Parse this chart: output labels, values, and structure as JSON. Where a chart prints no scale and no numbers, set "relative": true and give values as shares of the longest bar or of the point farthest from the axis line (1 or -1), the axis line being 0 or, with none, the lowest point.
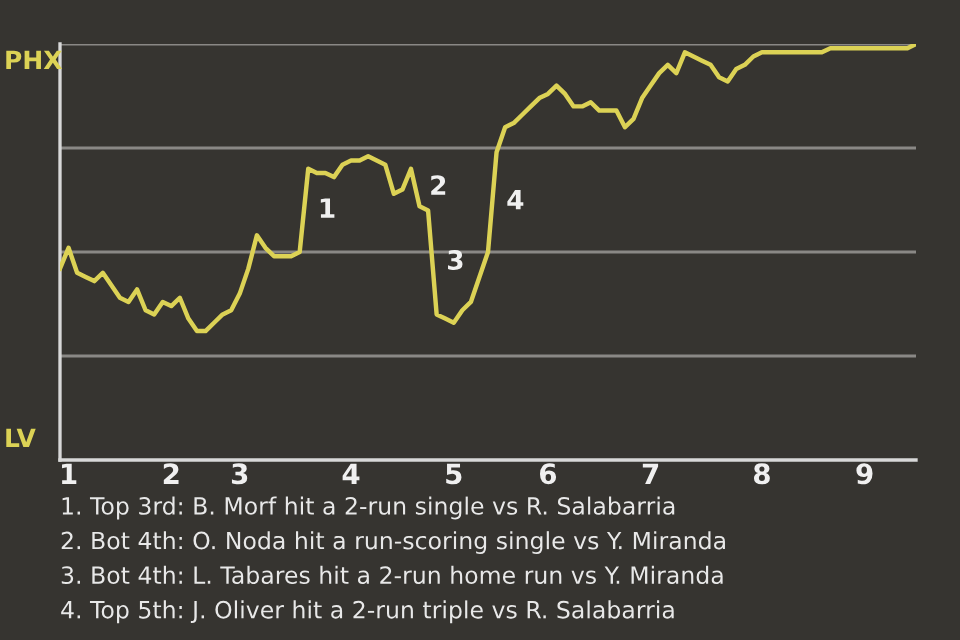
{
  "chart_data": {
    "type": "line",
    "relative": true,
    "categories": [
      null,
      "1",
      null,
      null,
      null,
      null,
      null,
      null,
      null,
      null,
      null,
      null,
      null,
      "2",
      null,
      null,
      null,
      null,
      null,
      null,
      null,
      "3",
      null,
      null,
      null,
      null,
      null,
      null,
      null,
      null,
      null,
      null,
      null,
      null,
      "4",
      null,
      null,
      null,
      null,
      null,
      null,
      null,
      null,
      null,
      null,
      null,
      "5",
      null,
      null,
      null,
      null,
      null,
      null,
      null,
      null,
      null,
      null,
      "6",
      null,
      null,
      null,
      null,
      null,
      null,
      null,
      null,
      null,
      null,
      null,
      "7",
      null,
      null,
      null,
      null,
      null,
      null,
      null,
      null,
      null,
      null,
      null,
      null,
      "8",
      null,
      null,
      null,
      null,
      null,
      null,
      null,
      null,
      null,
      null,
      null,
      "9",
      null,
      null,
      null,
      null,
      null,
      null
    ],
    "series": [
      {
        "color": "#dcd255",
        "values": [
          0.46,
          0.51,
          0.45,
          0.44,
          0.43,
          0.45,
          0.42,
          0.39,
          0.38,
          0.41,
          0.36,
          0.35,
          0.38,
          0.37,
          0.39,
          0.34,
          0.31,
          0.31,
          0.33,
          0.35,
          0.36,
          0.4,
          0.46,
          0.54,
          0.51,
          0.49,
          0.49,
          0.49,
          0.5,
          0.7,
          0.69,
          0.69,
          0.68,
          0.71,
          0.72,
          0.72,
          0.73,
          0.72,
          0.71,
          0.64,
          0.65,
          0.7,
          0.61,
          0.6,
          0.35,
          0.34,
          0.33,
          0.36,
          0.38,
          0.44,
          0.5,
          0.74,
          0.8,
          0.81,
          0.83,
          0.85,
          0.87,
          0.88,
          0.9,
          0.88,
          0.85,
          0.85,
          0.86,
          0.84,
          0.84,
          0.84,
          0.8,
          0.82,
          0.87,
          0.9,
          0.93,
          0.95,
          0.93,
          0.98,
          0.97,
          0.96,
          0.95,
          0.92,
          0.91,
          0.94,
          0.95,
          0.97,
          0.98,
          0.98,
          0.98,
          0.98,
          0.98,
          0.98,
          0.98,
          0.98,
          0.99,
          0.99,
          0.99,
          0.99,
          0.99,
          0.99,
          0.99,
          0.99,
          0.99,
          0.99,
          1.0
        ],
        "name": null
      }
    ],
    "ref_lines": [
      {
        "axis": "y",
        "value": 0.25,
        "color": "#8a8885"
      },
      {
        "axis": "y",
        "value": 0.5,
        "color": "#8a8885"
      },
      {
        "axis": "y",
        "value": 0.75,
        "color": "#8a8885"
      },
      {
        "axis": "y",
        "value": 1,
        "color": "#8a8885"
      }
    ],
    "annotations": [
      "PHX",
      "LV",
      "1",
      "2",
      "3",
      "4",
      "1. Top 3rd: B. Morf hit a 2-run single vs R. Salabarria",
      "2. Bot 4th: O. Noda hit a run-scoring single vs Y. Miranda",
      "3. Bot 4th: L. Tabares hit a 2-run home run vs Y. Miranda",
      "4. Top 5th: J. Oliver hit a 2-run triple vs R. Salabarria"
    ]
  }
}
